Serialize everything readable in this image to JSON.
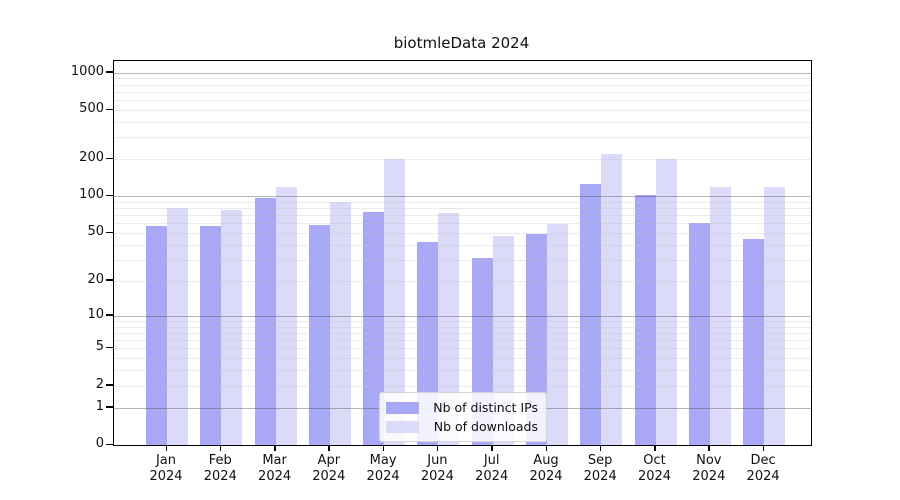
{
  "title": "biotmleData 2024",
  "chart_data": {
    "type": "bar",
    "categories": [
      "Jan",
      "Feb",
      "Mar",
      "Apr",
      "May",
      "Jun",
      "Jul",
      "Aug",
      "Sep",
      "Oct",
      "Nov",
      "Dec"
    ],
    "category_year": "2024",
    "series": [
      {
        "name": "Nb of distinct IPs",
        "color": "#a8a8f6",
        "values": [
          57,
          57,
          96,
          58,
          75,
          42,
          31,
          49,
          126,
          102,
          60,
          45
        ]
      },
      {
        "name": "Nb of downloads",
        "color": "#dbdbf9",
        "values": [
          80,
          77,
          120,
          90,
          202,
          73,
          47,
          59,
          220,
          202,
          120,
          118
        ]
      }
    ],
    "title": "biotmleData 2024",
    "xlabel": "",
    "ylabel": "",
    "yscale": "log1p",
    "yticks": [
      0,
      1,
      2,
      5,
      10,
      20,
      50,
      100,
      200,
      500,
      1000
    ],
    "ylim": [
      0,
      1250
    ],
    "grid": "horizontal",
    "legend_position": "lower center"
  },
  "colors": {
    "axis": "#000000",
    "major_grid": "#b4b4b4",
    "minor_grid": "#eeeeee",
    "background": "#ffffff"
  }
}
